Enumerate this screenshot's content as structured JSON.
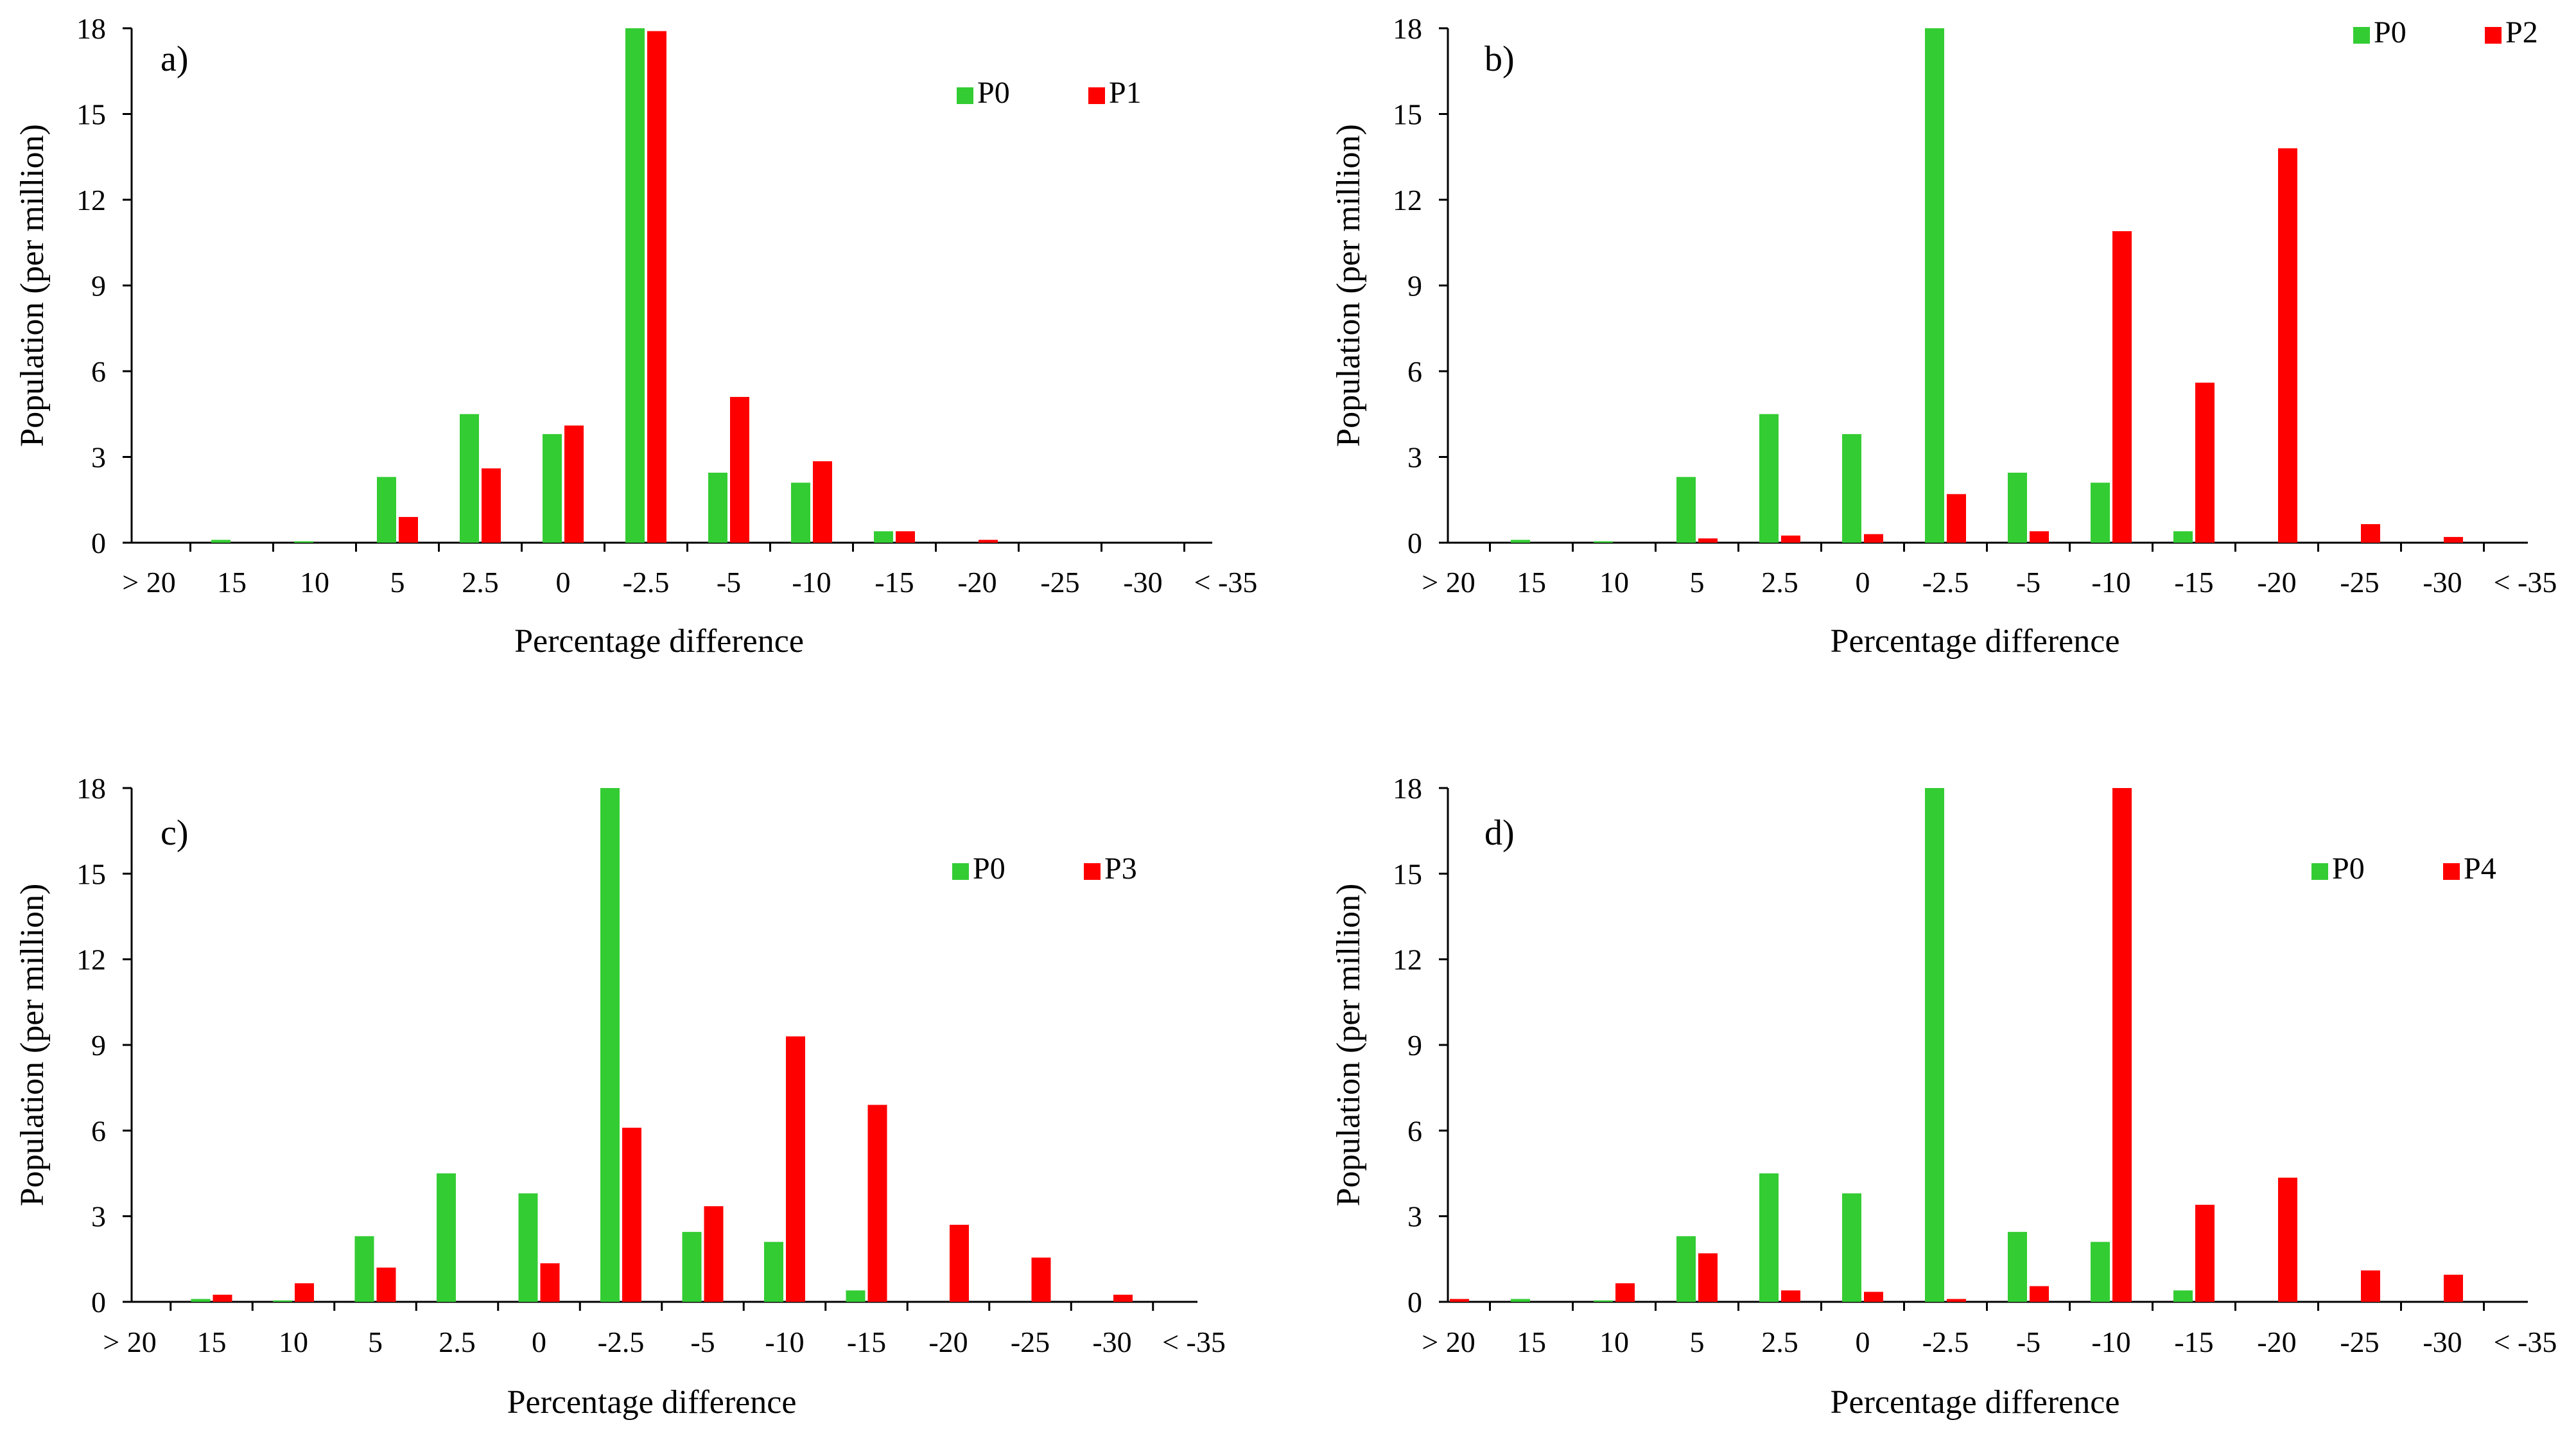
{
  "colors": {
    "P0": "#33cc33",
    "other": "#ff0000",
    "axis": "#000000"
  },
  "chart_data": [
    {
      "type": "bar",
      "panel_label": "a)",
      "title": "",
      "xlabel": "Percentage  difference",
      "ylabel": "Population  (per million)",
      "ylim": [
        0,
        18
      ],
      "yticks": [
        "0",
        "3",
        "6",
        "9",
        "12",
        "15",
        "18"
      ],
      "categories": [
        "> 20",
        "15",
        "10",
        "5",
        "2.5",
        "0",
        "-2.5",
        "-5",
        "-10",
        "-15",
        "-20",
        "-25",
        "-30",
        "< -35"
      ],
      "legend_position": "top-right",
      "series": [
        {
          "name": "P0",
          "color": "#33cc33",
          "values": [
            0,
            0.1,
            0.05,
            2.3,
            4.5,
            3.8,
            18,
            2.45,
            2.1,
            0.4,
            0,
            0,
            0,
            0
          ]
        },
        {
          "name": "P1",
          "color": "#ff0000",
          "values": [
            0,
            0,
            0,
            0.9,
            2.6,
            4.1,
            17.9,
            5.1,
            2.85,
            0.4,
            0.1,
            0,
            0,
            0
          ]
        }
      ]
    },
    {
      "type": "bar",
      "panel_label": "b)",
      "title": "",
      "xlabel": "Percentage  difference",
      "ylabel": "Population  (per million)",
      "ylim": [
        0,
        18
      ],
      "yticks": [
        "0",
        "3",
        "6",
        "9",
        "12",
        "15",
        "18"
      ],
      "categories": [
        "> 20",
        "15",
        "10",
        "5",
        "2.5",
        "0",
        "-2.5",
        "-5",
        "-10",
        "-15",
        "-20",
        "-25",
        "-30",
        "< -35"
      ],
      "legend_position": "top-right",
      "series": [
        {
          "name": "P0",
          "color": "#33cc33",
          "values": [
            0,
            0.1,
            0.05,
            2.3,
            4.5,
            3.8,
            18,
            2.45,
            2.1,
            0.4,
            0,
            0,
            0,
            0
          ]
        },
        {
          "name": "P2",
          "color": "#ff0000",
          "values": [
            0,
            0,
            0,
            0.15,
            0.25,
            0.3,
            1.7,
            0.4,
            10.9,
            5.6,
            13.8,
            0.65,
            0.2,
            0
          ]
        }
      ]
    },
    {
      "type": "bar",
      "panel_label": "c)",
      "title": "",
      "xlabel": "Percentage  difference",
      "ylabel": "Population  (per million)",
      "ylim": [
        0,
        18
      ],
      "yticks": [
        "0",
        "3",
        "6",
        "9",
        "12",
        "15",
        "18"
      ],
      "categories": [
        "> 20",
        "15",
        "10",
        "5",
        "2.5",
        "0",
        "-2.5",
        "-5",
        "-10",
        "-15",
        "-20",
        "-25",
        "-30",
        "< -35"
      ],
      "legend_position": "top-right",
      "series": [
        {
          "name": "P0",
          "color": "#33cc33",
          "values": [
            0,
            0.1,
            0.05,
            2.3,
            4.5,
            3.8,
            18,
            2.45,
            2.1,
            0.4,
            0,
            0,
            0,
            0
          ]
        },
        {
          "name": "P3",
          "color": "#ff0000",
          "values": [
            0,
            0.25,
            0.65,
            1.2,
            0,
            1.35,
            6.1,
            3.35,
            9.3,
            6.9,
            2.7,
            1.55,
            0.25,
            0
          ]
        }
      ]
    },
    {
      "type": "bar",
      "panel_label": "d)",
      "title": "",
      "xlabel": "Percentage  difference",
      "ylabel": "Population  (per million)",
      "ylim": [
        0,
        18
      ],
      "yticks": [
        "0",
        "3",
        "6",
        "9",
        "12",
        "15",
        "18"
      ],
      "categories": [
        "> 20",
        "15",
        "10",
        "5",
        "2.5",
        "0",
        "-2.5",
        "-5",
        "-10",
        "-15",
        "-20",
        "-25",
        "-30",
        "< -35"
      ],
      "legend_position": "top-right",
      "series": [
        {
          "name": "P0",
          "color": "#33cc33",
          "values": [
            0,
            0.1,
            0.05,
            2.3,
            4.5,
            3.8,
            18,
            2.45,
            2.1,
            0.4,
            0,
            0,
            0,
            0
          ]
        },
        {
          "name": "P4",
          "color": "#ff0000",
          "values": [
            0.1,
            0,
            0.65,
            1.7,
            0.4,
            0.35,
            0.1,
            0.55,
            18,
            3.4,
            4.35,
            1.1,
            0.95,
            0
          ]
        }
      ]
    }
  ]
}
